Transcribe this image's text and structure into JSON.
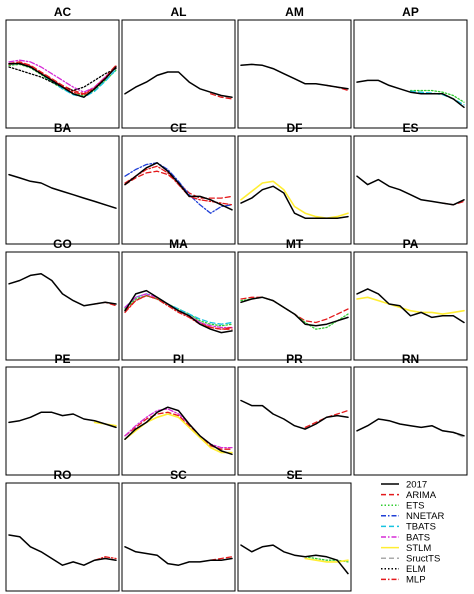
{
  "chart_data": {
    "type": "line",
    "layout": "small-multiples",
    "grid": false,
    "axes_labels": false,
    "legend": {
      "placement": "bottom-right",
      "entries": [
        {
          "name": "2017",
          "color": "#000000",
          "dash": "solid"
        },
        {
          "name": "ARIMA",
          "color": "#e41a1c",
          "dash": "dashed"
        },
        {
          "name": "ETS",
          "color": "#33cc33",
          "dash": "dotted"
        },
        {
          "name": "NNETAR",
          "color": "#1f3fd6",
          "dash": "dashdot"
        },
        {
          "name": "TBATS",
          "color": "#17c3e0",
          "dash": "dashed"
        },
        {
          "name": "BATS",
          "color": "#d62bd6",
          "dash": "dashdot"
        },
        {
          "name": "STLM",
          "color": "#ffee33",
          "dash": "solid"
        },
        {
          "name": "SructTS",
          "color": "#aaaaaa",
          "dash": "dashed"
        },
        {
          "name": "ELM",
          "color": "#000000",
          "dash": "dotted"
        },
        {
          "name": "MLP",
          "color": "#e41a1c",
          "dash": "dashdot"
        }
      ]
    },
    "panels": [
      {
        "title": "AC",
        "series": [
          {
            "name": "2017",
            "values": [
              0.4,
              0.4,
              0.44,
              0.52,
              0.6,
              0.68,
              0.76,
              0.8,
              0.7,
              0.58,
              0.44
            ]
          },
          {
            "name": "ARIMA",
            "values": [
              0.4,
              0.38,
              0.42,
              0.5,
              0.58,
              0.66,
              0.72,
              0.76,
              0.68,
              0.56,
              0.42
            ]
          },
          {
            "name": "ETS",
            "values": [
              0.42,
              0.41,
              0.45,
              0.53,
              0.62,
              0.7,
              0.76,
              0.78,
              0.72,
              0.6,
              0.48
            ]
          },
          {
            "name": "TBATS",
            "values": [
              0.41,
              0.4,
              0.44,
              0.52,
              0.61,
              0.7,
              0.77,
              0.8,
              0.73,
              0.61,
              0.47
            ]
          },
          {
            "name": "BATS",
            "values": [
              0.38,
              0.36,
              0.38,
              0.44,
              0.52,
              0.6,
              0.68,
              0.74,
              0.68,
              0.56,
              0.44
            ]
          },
          {
            "name": "ELM",
            "values": [
              0.44,
              0.48,
              0.52,
              0.56,
              0.62,
              0.68,
              0.72,
              0.68,
              0.6,
              0.52,
              0.46
            ]
          },
          {
            "name": "MLP",
            "values": [
              0.41,
              0.39,
              0.43,
              0.51,
              0.59,
              0.67,
              0.74,
              0.77,
              0.69,
              0.57,
              0.43
            ]
          }
        ]
      },
      {
        "title": "AL",
        "series": [
          {
            "name": "2017",
            "values": [
              0.76,
              0.68,
              0.62,
              0.54,
              0.5,
              0.5,
              0.62,
              0.7,
              0.74,
              0.78,
              0.8
            ]
          },
          {
            "name": "ARIMA",
            "values": [
              null,
              null,
              null,
              null,
              null,
              null,
              null,
              null,
              0.76,
              0.8,
              0.82
            ]
          }
        ]
      },
      {
        "title": "AM",
        "series": [
          {
            "name": "2017",
            "values": [
              0.42,
              0.41,
              0.42,
              0.46,
              0.52,
              0.58,
              0.64,
              0.64,
              0.66,
              0.68,
              0.7
            ]
          },
          {
            "name": "ARIMA",
            "values": [
              null,
              null,
              null,
              null,
              null,
              null,
              null,
              null,
              0.66,
              0.68,
              0.72
            ]
          }
        ]
      },
      {
        "title": "AP",
        "series": [
          {
            "name": "2017",
            "values": [
              0.62,
              0.6,
              0.6,
              0.66,
              0.7,
              0.74,
              0.76,
              0.76,
              0.76,
              0.82,
              0.92
            ]
          },
          {
            "name": "ETS",
            "values": [
              null,
              null,
              null,
              null,
              null,
              0.72,
              0.72,
              0.72,
              0.74,
              0.78,
              0.86
            ]
          },
          {
            "name": "TBATS",
            "values": [
              null,
              null,
              null,
              null,
              null,
              0.73,
              0.74,
              0.75,
              0.77,
              0.82,
              0.89
            ]
          }
        ]
      },
      {
        "title": "BA",
        "series": [
          {
            "name": "2017",
            "values": [
              0.34,
              0.38,
              0.42,
              0.44,
              0.5,
              0.54,
              0.58,
              0.62,
              0.66,
              0.7,
              0.74
            ]
          },
          {
            "name": "SructTS",
            "values": [
              null,
              null,
              null,
              null,
              null,
              null,
              null,
              null,
              0.66,
              0.7,
              0.74
            ]
          }
        ]
      },
      {
        "title": "CE",
        "series": [
          {
            "name": "2017",
            "values": [
              0.46,
              0.36,
              0.26,
              0.2,
              0.3,
              0.44,
              0.6,
              0.6,
              0.64,
              0.7,
              0.76
            ]
          },
          {
            "name": "ARIMA",
            "values": [
              0.46,
              0.38,
              0.32,
              0.3,
              0.34,
              0.44,
              0.56,
              0.62,
              0.62,
              0.62,
              0.6
            ]
          },
          {
            "name": "NNETAR",
            "values": [
              0.36,
              0.28,
              0.22,
              0.2,
              0.28,
              0.42,
              0.58,
              0.7,
              0.8,
              0.72,
              0.7
            ]
          },
          {
            "name": "MLP",
            "values": [
              0.44,
              0.36,
              0.28,
              0.24,
              0.32,
              0.46,
              0.6,
              0.64,
              0.66,
              0.68,
              0.7
            ]
          }
        ]
      },
      {
        "title": "DF",
        "series": [
          {
            "name": "2017",
            "values": [
              0.68,
              0.62,
              0.52,
              0.48,
              0.56,
              0.8,
              0.86,
              0.86,
              0.86,
              0.86,
              0.84
            ]
          },
          {
            "name": "STLM",
            "values": [
              0.64,
              0.54,
              0.44,
              0.42,
              0.52,
              0.72,
              0.8,
              0.84,
              0.86,
              0.84,
              0.8
            ]
          }
        ]
      },
      {
        "title": "ES",
        "series": [
          {
            "name": "2017",
            "values": [
              0.36,
              0.46,
              0.4,
              0.48,
              0.52,
              0.58,
              0.64,
              0.66,
              0.68,
              0.7,
              0.64
            ]
          },
          {
            "name": "ARIMA",
            "values": [
              null,
              null,
              null,
              null,
              null,
              null,
              null,
              null,
              0.68,
              0.7,
              0.66
            ]
          }
        ]
      },
      {
        "title": "GO",
        "series": [
          {
            "name": "2017",
            "values": [
              0.26,
              0.22,
              0.16,
              0.14,
              0.22,
              0.38,
              0.46,
              0.52,
              0.5,
              0.48,
              0.5
            ]
          },
          {
            "name": "ARIMA",
            "values": [
              null,
              null,
              null,
              null,
              null,
              null,
              null,
              null,
              0.5,
              0.48,
              0.52
            ]
          }
        ]
      },
      {
        "title": "MA",
        "series": [
          {
            "name": "2017",
            "values": [
              0.58,
              0.38,
              0.34,
              0.42,
              0.5,
              0.58,
              0.64,
              0.74,
              0.8,
              0.84,
              0.82
            ]
          },
          {
            "name": "ARIMA",
            "values": [
              0.58,
              0.46,
              0.4,
              0.44,
              0.5,
              0.58,
              0.64,
              0.72,
              0.78,
              0.8,
              0.8
            ]
          },
          {
            "name": "ETS",
            "values": [
              0.56,
              0.44,
              0.4,
              0.44,
              0.5,
              0.56,
              0.62,
              0.7,
              0.74,
              0.76,
              0.74
            ]
          },
          {
            "name": "TBATS",
            "values": [
              0.54,
              0.42,
              0.38,
              0.42,
              0.5,
              0.56,
              0.62,
              0.68,
              0.72,
              0.74,
              0.72
            ]
          },
          {
            "name": "BATS",
            "values": [
              0.54,
              0.42,
              0.38,
              0.42,
              0.5,
              0.58,
              0.64,
              0.72,
              0.76,
              0.78,
              0.78
            ]
          },
          {
            "name": "MLP",
            "values": [
              0.6,
              0.46,
              0.4,
              0.44,
              0.52,
              0.6,
              0.66,
              0.74,
              0.78,
              0.8,
              0.78
            ]
          }
        ]
      },
      {
        "title": "MT",
        "series": [
          {
            "name": "2017",
            "values": [
              0.48,
              0.44,
              0.42,
              0.46,
              0.54,
              0.62,
              0.74,
              0.76,
              0.74,
              0.7,
              0.66
            ]
          },
          {
            "name": "ARIMA",
            "values": [
              0.44,
              0.42,
              0.42,
              0.46,
              0.54,
              0.62,
              0.7,
              0.72,
              0.68,
              0.62,
              0.56
            ]
          },
          {
            "name": "ETS",
            "values": [
              0.46,
              0.44,
              0.42,
              0.46,
              0.54,
              0.62,
              0.72,
              0.8,
              0.78,
              0.7,
              0.62
            ]
          }
        ]
      },
      {
        "title": "PA",
        "series": [
          {
            "name": "2017",
            "values": [
              0.38,
              0.32,
              0.38,
              0.5,
              0.52,
              0.64,
              0.6,
              0.66,
              0.64,
              0.64,
              0.72
            ]
          },
          {
            "name": "STLM",
            "values": [
              0.44,
              0.42,
              0.46,
              0.5,
              0.54,
              0.58,
              0.6,
              0.6,
              0.62,
              0.6,
              0.58
            ]
          }
        ]
      },
      {
        "title": "PE",
        "series": [
          {
            "name": "2017",
            "values": [
              0.54,
              0.52,
              0.48,
              0.42,
              0.42,
              0.46,
              0.44,
              0.5,
              0.52,
              0.56,
              0.6
            ]
          },
          {
            "name": "STLM",
            "values": [
              null,
              null,
              null,
              null,
              null,
              null,
              null,
              null,
              0.54,
              0.56,
              0.58
            ]
          }
        ]
      },
      {
        "title": "PI",
        "series": [
          {
            "name": "2017",
            "values": [
              0.74,
              0.62,
              0.54,
              0.42,
              0.36,
              0.4,
              0.56,
              0.7,
              0.8,
              0.88,
              0.92
            ]
          },
          {
            "name": "ARIMA",
            "values": [
              0.7,
              0.6,
              0.5,
              0.44,
              0.42,
              0.46,
              0.58,
              0.7,
              0.82,
              0.86,
              0.86
            ]
          },
          {
            "name": "BATS",
            "values": [
              0.7,
              0.58,
              0.48,
              0.4,
              0.38,
              0.44,
              0.56,
              0.7,
              0.8,
              0.84,
              0.84
            ]
          },
          {
            "name": "STLM",
            "values": [
              0.74,
              0.64,
              0.54,
              0.48,
              0.44,
              0.48,
              0.6,
              0.72,
              0.84,
              0.9,
              0.9
            ]
          }
        ]
      },
      {
        "title": "PR",
        "series": [
          {
            "name": "2017",
            "values": [
              0.28,
              0.34,
              0.34,
              0.44,
              0.5,
              0.58,
              0.62,
              0.56,
              0.48,
              0.46,
              0.48
            ]
          },
          {
            "name": "ARIMA",
            "values": [
              null,
              null,
              null,
              null,
              null,
              null,
              0.6,
              0.54,
              0.48,
              0.44,
              0.4
            ]
          }
        ]
      },
      {
        "title": "RN",
        "series": [
          {
            "name": "2017",
            "values": [
              0.64,
              0.58,
              0.5,
              0.52,
              0.56,
              0.58,
              0.6,
              0.58,
              0.64,
              0.66,
              0.7
            ]
          },
          {
            "name": "SructTS",
            "values": [
              null,
              null,
              null,
              null,
              null,
              null,
              null,
              null,
              0.64,
              0.66,
              0.72
            ]
          }
        ]
      },
      {
        "title": "RO",
        "series": [
          {
            "name": "2017",
            "values": [
              0.5,
              0.52,
              0.64,
              0.7,
              0.78,
              0.86,
              0.82,
              0.86,
              0.8,
              0.78,
              0.8
            ]
          },
          {
            "name": "MLP",
            "values": [
              null,
              null,
              null,
              null,
              null,
              null,
              null,
              null,
              0.8,
              0.76,
              0.78
            ]
          }
        ]
      },
      {
        "title": "SC",
        "series": [
          {
            "name": "2017",
            "values": [
              0.64,
              0.7,
              0.72,
              0.74,
              0.84,
              0.86,
              0.82,
              0.82,
              0.8,
              0.8,
              0.78
            ]
          },
          {
            "name": "ARIMA",
            "values": [
              null,
              null,
              null,
              null,
              null,
              null,
              null,
              null,
              0.8,
              0.78,
              0.76
            ]
          }
        ]
      },
      {
        "title": "SE",
        "series": [
          {
            "name": "2017",
            "values": [
              0.62,
              0.7,
              0.64,
              0.62,
              0.7,
              0.74,
              0.76,
              0.74,
              0.76,
              0.8,
              0.96
            ]
          },
          {
            "name": "ETS",
            "values": [
              null,
              null,
              null,
              null,
              null,
              null,
              0.76,
              0.78,
              0.8,
              0.8,
              0.82
            ]
          },
          {
            "name": "STLM",
            "values": [
              null,
              null,
              null,
              null,
              null,
              null,
              0.78,
              0.8,
              0.82,
              0.82,
              0.8
            ]
          }
        ]
      }
    ]
  }
}
